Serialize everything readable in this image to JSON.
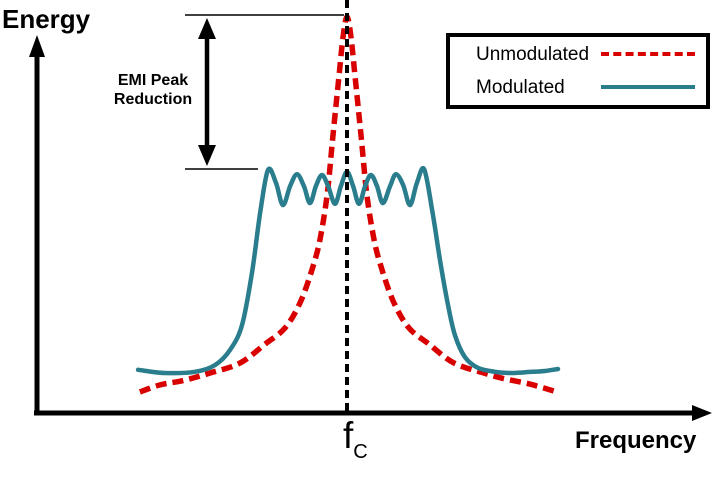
{
  "axes": {
    "y_label": "Energy",
    "x_label": "Frequency"
  },
  "carrier": {
    "symbol": "f",
    "subscript": "C"
  },
  "annotation": {
    "line1": "EMI Peak",
    "line2": "Reduction"
  },
  "legend": {
    "unmodulated_label": "Unmodulated",
    "modulated_label": "Modulated"
  },
  "colors": {
    "unmodulated": "#d90000",
    "modulated": "#2a7d8c",
    "axis": "#000000"
  },
  "chart_data": {
    "type": "line",
    "title": "EMI peak reduction of a spread-spectrum (modulated) clock vs unmodulated clock",
    "xlabel": "Frequency",
    "ylabel": "Energy",
    "x_units": "offset from carrier fC, normalized (no numeric scale shown)",
    "y_units": "relative energy, normalized to unmodulated peak (no numeric scale shown)",
    "x_range": [
      -1.05,
      1.05
    ],
    "y_range": [
      0,
      1.05
    ],
    "grid": false,
    "legend_position": "top-right",
    "annotations": [
      {
        "text": "EMI Peak Reduction",
        "type": "double-arrow",
        "x": -0.667,
        "y_from": 0.616,
        "y_to": 1.0
      },
      {
        "text": "fC",
        "type": "vertical-dashed-line",
        "x": 0
      }
    ],
    "series": [
      {
        "name": "Unmodulated",
        "style": "dashed",
        "color": "#d90000",
        "points": [
          [
            -0.986,
            0.053
          ],
          [
            -0.89,
            0.071
          ],
          [
            -0.771,
            0.083
          ],
          [
            -0.652,
            0.101
          ],
          [
            -0.51,
            0.126
          ],
          [
            -0.39,
            0.174
          ],
          [
            -0.295,
            0.215
          ],
          [
            -0.224,
            0.278
          ],
          [
            -0.167,
            0.361
          ],
          [
            -0.129,
            0.437
          ],
          [
            -0.095,
            0.55
          ],
          [
            -0.067,
            0.699
          ],
          [
            -0.038,
            0.851
          ],
          [
            -0.019,
            0.949
          ],
          [
            0.0,
            1.0
          ],
          [
            0.019,
            0.949
          ],
          [
            0.038,
            0.851
          ],
          [
            0.067,
            0.699
          ],
          [
            0.095,
            0.55
          ],
          [
            0.129,
            0.437
          ],
          [
            0.167,
            0.361
          ],
          [
            0.224,
            0.278
          ],
          [
            0.295,
            0.215
          ],
          [
            0.39,
            0.174
          ],
          [
            0.51,
            0.126
          ],
          [
            0.652,
            0.101
          ],
          [
            0.738,
            0.088
          ],
          [
            0.871,
            0.073
          ],
          [
            1.0,
            0.053
          ]
        ]
      },
      {
        "name": "Modulated",
        "style": "solid",
        "color": "#2a7d8c",
        "points": [
          [
            -0.995,
            0.109
          ],
          [
            -0.867,
            0.101
          ],
          [
            -0.724,
            0.104
          ],
          [
            -0.629,
            0.121
          ],
          [
            -0.557,
            0.159
          ],
          [
            -0.5,
            0.222
          ],
          [
            -0.452,
            0.356
          ],
          [
            -0.414,
            0.505
          ],
          [
            -0.376,
            0.614
          ],
          [
            -0.338,
            0.581
          ],
          [
            -0.305,
            0.525
          ],
          [
            -0.271,
            0.573
          ],
          [
            -0.238,
            0.603
          ],
          [
            -0.205,
            0.573
          ],
          [
            -0.176,
            0.53
          ],
          [
            -0.148,
            0.573
          ],
          [
            -0.119,
            0.601
          ],
          [
            -0.09,
            0.573
          ],
          [
            -0.057,
            0.528
          ],
          [
            -0.029,
            0.573
          ],
          [
            0.0,
            0.609
          ],
          [
            0.029,
            0.573
          ],
          [
            0.057,
            0.528
          ],
          [
            0.086,
            0.573
          ],
          [
            0.114,
            0.601
          ],
          [
            0.143,
            0.573
          ],
          [
            0.171,
            0.53
          ],
          [
            0.205,
            0.573
          ],
          [
            0.233,
            0.603
          ],
          [
            0.267,
            0.576
          ],
          [
            0.3,
            0.525
          ],
          [
            0.333,
            0.581
          ],
          [
            0.367,
            0.616
          ],
          [
            0.405,
            0.513
          ],
          [
            0.443,
            0.386
          ],
          [
            0.481,
            0.273
          ],
          [
            0.514,
            0.197
          ],
          [
            0.562,
            0.141
          ],
          [
            0.624,
            0.114
          ],
          [
            0.705,
            0.104
          ],
          [
            0.786,
            0.101
          ],
          [
            0.881,
            0.104
          ],
          [
            0.943,
            0.106
          ],
          [
            1.005,
            0.111
          ]
        ]
      }
    ]
  }
}
